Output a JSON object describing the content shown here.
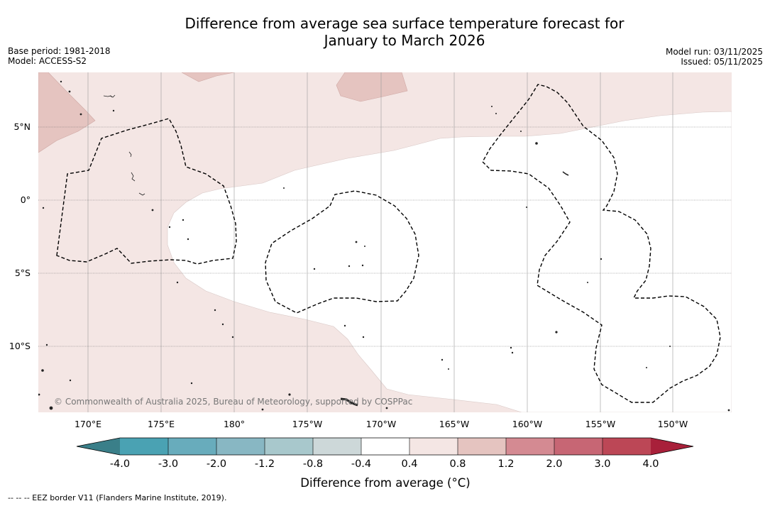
{
  "title": {
    "line1": "Difference from average sea surface temperature forecast for",
    "line2": "January to March 2026"
  },
  "meta_left": {
    "base_period": "Base period: 1981-2018",
    "model": "Model: ACCESS-S2"
  },
  "meta_right": {
    "model_run": "Model run: 03/11/2025",
    "issued": "Issued: 05/11/2025"
  },
  "map": {
    "lat_labels": [
      "5°N",
      "0°",
      "5°S",
      "10°S"
    ],
    "lon_labels": [
      "170°E",
      "175°E",
      "180°",
      "175°W",
      "170°W",
      "165°W",
      "160°W",
      "155°W",
      "150°W"
    ],
    "copyright": "© Commonwealth of Australia 2025, Bureau of Meteorology, supported by COSPPac"
  },
  "colorbar": {
    "ticks": [
      "-4.0",
      "-3.0",
      "-2.0",
      "-1.2",
      "-0.8",
      "-0.4",
      "0.4",
      "0.8",
      "1.2",
      "2.0",
      "3.0",
      "4.0"
    ],
    "colors": [
      "#3a7f89",
      "#4aa2b3",
      "#68acbc",
      "#88b7c3",
      "#a8c8cc",
      "#cdd8d9",
      "#ffffff",
      "#f4e6e4",
      "#e5c4c0",
      "#d48a92",
      "#c76674",
      "#bc4756",
      "#a8203a"
    ],
    "title": "Difference from average (°C)"
  },
  "legend_note": "--  --  -- EEZ border V11 (Flanders Marine Institute, 2019).",
  "colors": {
    "anomaly_pale": "#f4e6e4",
    "anomaly_mid": "#e5c4c0",
    "neutral": "#ffffff",
    "eez_line": "#000000",
    "land": "#444444"
  }
}
